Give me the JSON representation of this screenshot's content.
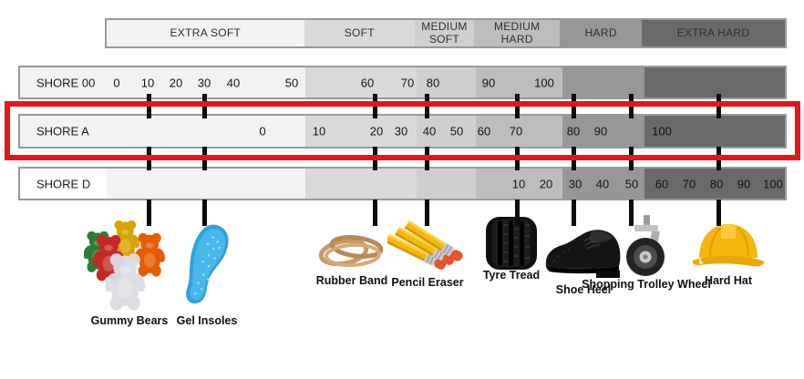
{
  "categories": [
    {
      "label": "EXTRA SOFT",
      "color": "#F2F2F2"
    },
    {
      "label": "SOFT",
      "color": "#D9D9D9"
    },
    {
      "label": "MEDIUM SOFT",
      "color": "#CFCFCF"
    },
    {
      "label": "MEDIUM HARD",
      "color": "#BDBDBD"
    },
    {
      "label": "HARD",
      "color": "#979797"
    },
    {
      "label": "EXTRA HARD",
      "color": "#6A6A6A"
    }
  ],
  "scale_rows": [
    {
      "id": "shore00",
      "label": "SHORE 00",
      "values": [
        0,
        10,
        20,
        30,
        40,
        50,
        60,
        70,
        80,
        90,
        100
      ]
    },
    {
      "id": "shoreA",
      "label": "SHORE A",
      "values": [
        0,
        10,
        20,
        30,
        40,
        50,
        60,
        70,
        80,
        90,
        100
      ],
      "highlighted": true
    },
    {
      "id": "shoreD",
      "label": "SHORE D",
      "values": [
        10,
        20,
        30,
        40,
        50,
        60,
        70,
        80,
        90,
        100
      ]
    }
  ],
  "highlight": {
    "row": "SHORE A",
    "color": "#E8141C"
  },
  "examples": [
    {
      "name": "Gummy Bears",
      "icon": "gummy-bears-icon"
    },
    {
      "name": "Gel Insoles",
      "icon": "gel-insole-icon"
    },
    {
      "name": "Rubber Band",
      "icon": "rubber-band-icon"
    },
    {
      "name": "Pencil Eraser",
      "icon": "pencil-eraser-icon"
    },
    {
      "name": "Tyre Tread",
      "icon": "tyre-tread-icon"
    },
    {
      "name": "Shoe Heel",
      "icon": "shoe-heel-icon"
    },
    {
      "name": "Shopping Trolley Wheel",
      "icon": "trolley-wheel-icon"
    },
    {
      "name": "Hard Hat",
      "icon": "hard-hat-icon"
    }
  ]
}
